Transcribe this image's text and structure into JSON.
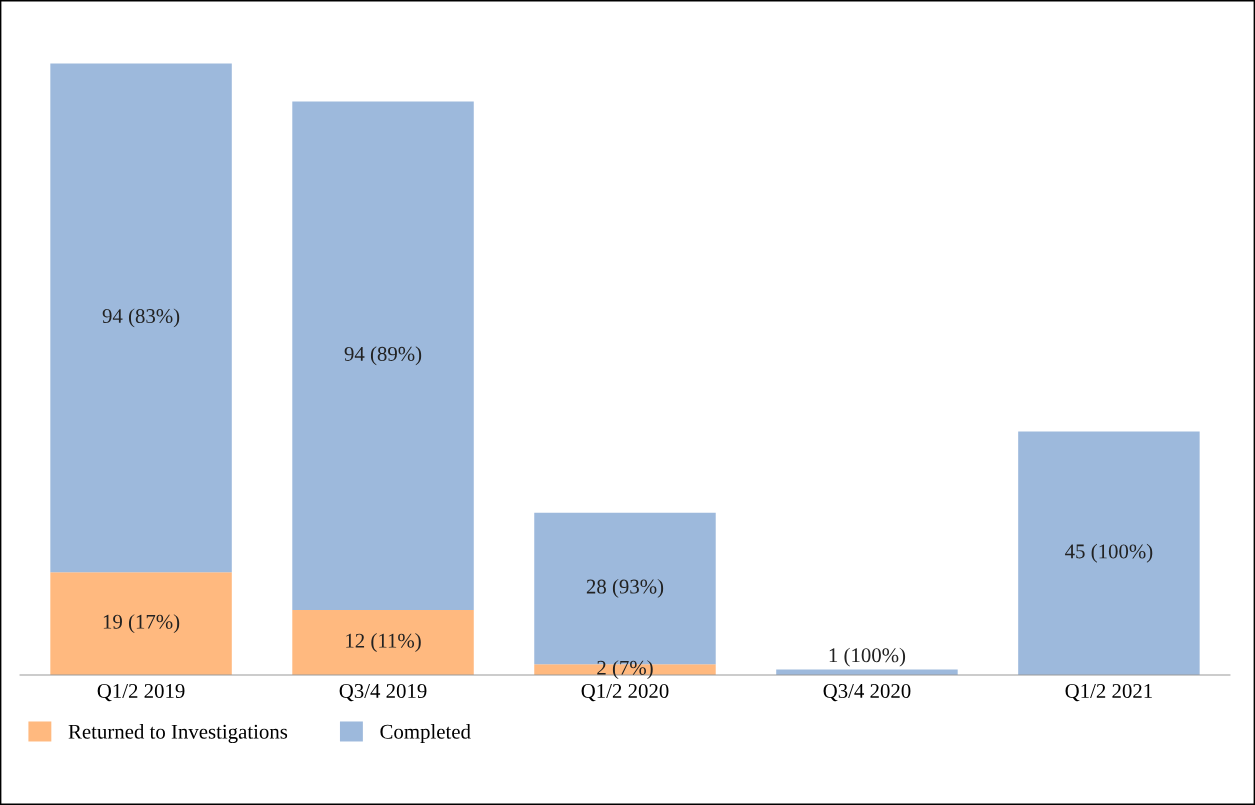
{
  "chart_data": {
    "type": "bar",
    "stacked": true,
    "categories": [
      "Q1/2 2019",
      "Q3/4 2019",
      "Q1/2 2020",
      "Q3/4 2020",
      "Q1/2 2021"
    ],
    "series": [
      {
        "name": "Returned to Investigations",
        "color": "#ffb97f",
        "values": [
          19,
          12,
          2,
          0,
          0
        ],
        "value_labels": [
          "19 (17%)",
          "12 (11%)",
          "2 (7%)",
          null,
          null
        ]
      },
      {
        "name": "Completed",
        "color": "#9db9dc",
        "values": [
          94,
          94,
          28,
          1,
          45
        ],
        "value_labels": [
          "94 (83%)",
          "94 (89%)",
          "28 (93%)",
          "1 (100%)",
          "45 (100%)"
        ]
      }
    ],
    "legend": "bottom left"
  }
}
